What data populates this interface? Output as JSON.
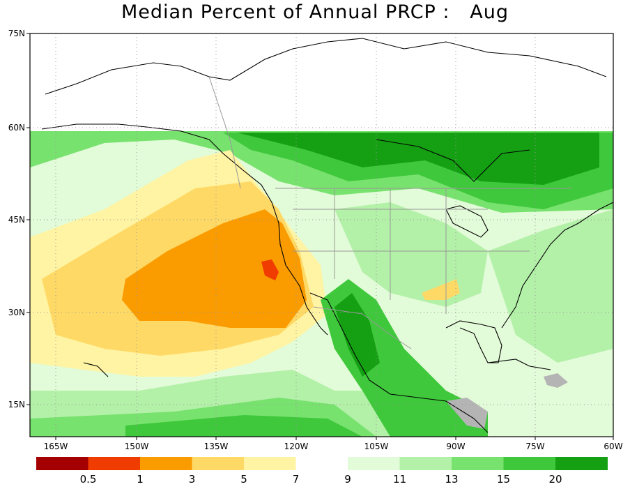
{
  "title": "Median Percent of Annual PRCP :   Aug",
  "map": {
    "lat_ticks": [
      "75N",
      "60N",
      "45N",
      "30N",
      "15N"
    ],
    "lon_ticks": [
      "165W",
      "150W",
      "135W",
      "120W",
      "105W",
      "90W",
      "75W",
      "60W"
    ]
  },
  "colorbar": {
    "colors": [
      "#a50000",
      "#f03c00",
      "#fa9b00",
      "#ffd966",
      "#fff4a3",
      "#ffffff",
      "#e2fbd8",
      "#b3f0a8",
      "#78e26e",
      "#3fc83c",
      "#15a014"
    ],
    "labels": [
      "0.5",
      "1",
      "3",
      "5",
      "7",
      "9",
      "11",
      "13",
      "15",
      "20"
    ]
  },
  "land_mask_color": "#b4b4b4"
}
